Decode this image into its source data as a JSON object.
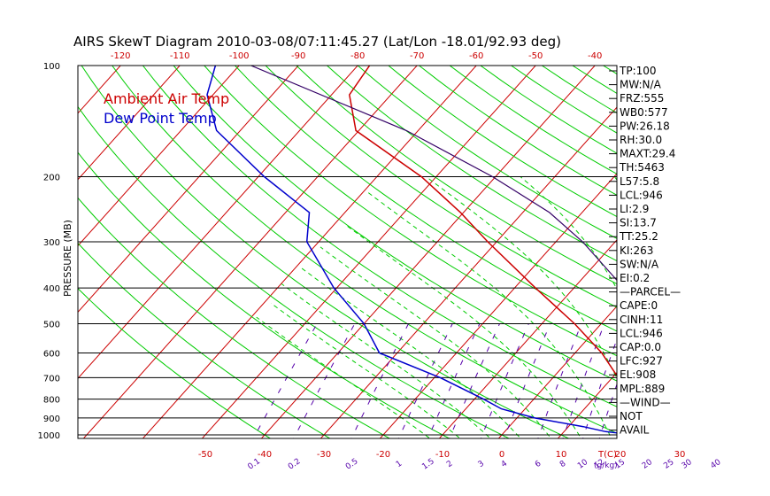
{
  "title": "AIRS SkewT Diagram 2010-03-08/07:11:45.27 (Lat/Lon -18.01/92.93 deg)",
  "legend": [
    {
      "label": "Ambient Air Temp",
      "color": "#cc0000"
    },
    {
      "label": "Dew Point Temp",
      "color": "#0000cc"
    }
  ],
  "colors": {
    "temp": "#cc0000",
    "dewpoint": "#0000cc",
    "parcel": "#330066",
    "dry_adiabat": "#00cc00",
    "mixing": "#5500aa",
    "isotherm": "#cc0000",
    "isobar": "#000000"
  },
  "chart_data": {
    "type": "line",
    "title": "AIRS SkewT Diagram 2010-03-08/07:11:45.27 (Lat/Lon -18.01/92.93 deg)",
    "ylabel": "PRESSURE (MB)",
    "xlabel": "T(C)",
    "y_scale": "log",
    "ylim": [
      1000,
      100
    ],
    "pressure_ticks": [
      100,
      200,
      300,
      400,
      500,
      600,
      700,
      800,
      900,
      1000
    ],
    "top_temp_ticks": [
      -120,
      -110,
      -100,
      -90,
      -80,
      -70,
      -60,
      -50,
      -40
    ],
    "bottom_temp_ticks": [
      -50,
      -40,
      -30,
      -20,
      -10,
      0,
      10,
      20,
      30
    ],
    "mixing_ratio_ticks": [
      "0.1",
      "0.2",
      "0.5",
      "1",
      "1.5",
      "2",
      "3",
      "4",
      "6",
      "8",
      "10",
      "12",
      "15",
      "20",
      "25",
      "30",
      "40"
    ],
    "mixing_ratio_unit": "(g/kg)",
    "mixing_ratio_values": [
      0.1,
      0.2,
      0.5,
      1,
      1.5,
      2,
      3,
      4,
      6,
      8,
      10,
      12,
      15,
      20,
      25,
      30,
      40
    ],
    "series": [
      {
        "name": "Ambient Air Temp",
        "color": "#cc0000",
        "pressure": [
          1000,
          980,
          950,
          900,
          850,
          800,
          700,
          600,
          500,
          400,
          300,
          250,
          200,
          150,
          120,
          100
        ],
        "temp": [
          26.3,
          23.5,
          21,
          19.5,
          18,
          15.5,
          11,
          4.5,
          -4.5,
          -16.5,
          -31.5,
          -40.5,
          -52.5,
          -70.5,
          -77,
          -78
        ]
      },
      {
        "name": "Dew Point Temp",
        "color": "#0000cc",
        "pressure": [
          1000,
          980,
          950,
          900,
          850,
          800,
          700,
          600,
          500,
          400,
          300,
          250,
          200,
          150,
          120,
          100
        ],
        "temp": [
          22.5,
          17,
          12.5,
          3,
          -4,
          -8.5,
          -19,
          -33,
          -40,
          -50.5,
          -62,
          -66,
          -79,
          -94,
          -101,
          -104
        ]
      },
      {
        "pressure": [
          1000,
          950,
          900,
          850,
          800,
          700,
          600,
          500,
          400,
          300,
          250,
          200,
          150,
          100
        ],
        "temp": [
          22.5,
          21.5,
          20.4,
          19.2,
          18,
          15.2,
          11.8,
          6.5,
          -1.6,
          -15.5,
          -25.5,
          -40.5,
          -62,
          -98
        ]
      }
    ],
    "grid": true
  },
  "indices": [
    "TP:100",
    "MW:N/A",
    "FRZ:555",
    "WB0:577",
    "PW:26.18",
    "RH:30.0",
    "MAXT:29.4",
    "TH:5463",
    "L57:5.8",
    "LCL:946",
    "LI:2.9",
    "SI:13.7",
    "TT:25.2",
    "KI:263",
    "SW:N/A",
    "EI:0.2",
    "—PARCEL—",
    "CAPE:0",
    "CINH:11",
    "LCL:946",
    "CAP:0.0",
    "LFC:927",
    "EL:908",
    "MPL:889",
    "—WIND—",
    "NOT",
    "AVAIL"
  ]
}
